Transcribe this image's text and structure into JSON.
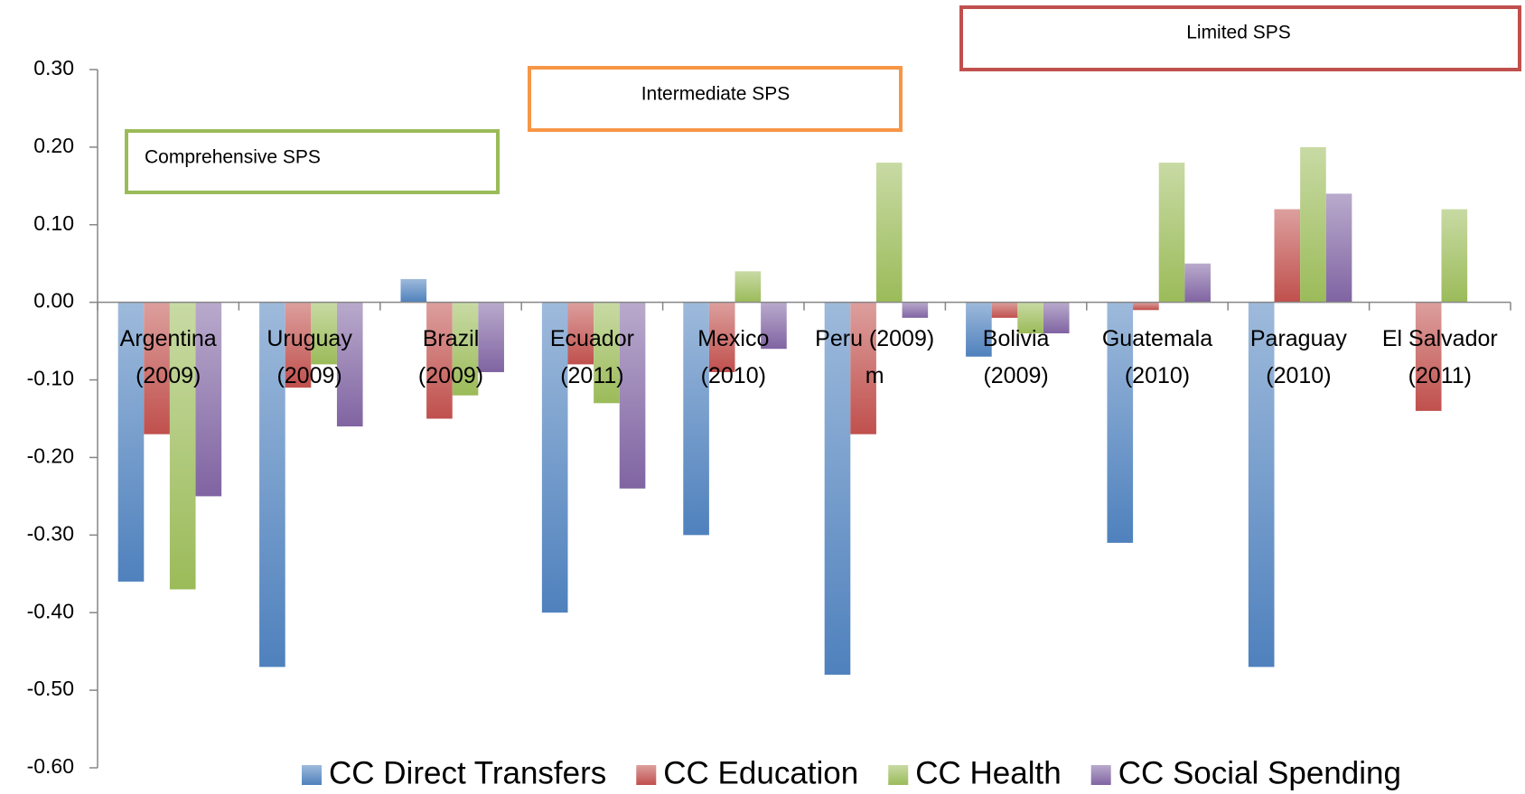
{
  "chart_data": {
    "type": "bar",
    "categories": [
      "Argentina (2009)",
      "Uruguay (2009)",
      "Brazil (2009)",
      "Ecuador (2011)",
      "Mexico (2010)",
      "Peru (2009) m",
      "Bolivia (2009)",
      "Guatemala (2010)",
      "Paraguay (2010)",
      "El Salvador (2011)"
    ],
    "series": [
      {
        "name": "CC Direct Transfers",
        "color": "#4f81bd",
        "values": [
          -0.36,
          -0.47,
          0.03,
          -0.4,
          -0.3,
          -0.48,
          -0.07,
          -0.31,
          -0.47,
          null
        ]
      },
      {
        "name": "CC Education",
        "color": "#c0504d",
        "values": [
          -0.17,
          -0.11,
          -0.15,
          -0.08,
          -0.09,
          -0.17,
          -0.02,
          -0.01,
          0.12,
          -0.14
        ]
      },
      {
        "name": "CC Health",
        "color": "#9bbb59",
        "values": [
          -0.37,
          -0.08,
          -0.12,
          -0.13,
          0.04,
          0.18,
          -0.04,
          0.18,
          0.2,
          0.12
        ]
      },
      {
        "name": "CC Social Spending",
        "color": "#8064a2",
        "values": [
          -0.25,
          -0.16,
          -0.09,
          -0.24,
          -0.06,
          -0.02,
          -0.04,
          0.05,
          0.14,
          null
        ]
      }
    ],
    "ylim": [
      -0.6,
      0.3
    ],
    "yticks": [
      {
        "value": -0.6,
        "label": "-0.60"
      },
      {
        "value": -0.5,
        "label": "-0.50"
      },
      {
        "value": -0.4,
        "label": "-0.40"
      },
      {
        "value": -0.3,
        "label": "-0.30"
      },
      {
        "value": -0.2,
        "label": "-0.20"
      },
      {
        "value": -0.1,
        "label": "-0.10"
      },
      {
        "value": 0,
        "label": "0.00"
      },
      {
        "value": 0.1,
        "label": "0.10"
      },
      {
        "value": 0.2,
        "label": "0.20"
      },
      {
        "value": 0.3,
        "label": "0.30"
      }
    ],
    "grid": false,
    "legend": "bottom",
    "annotations": [
      {
        "text": "Comprehensive SPS",
        "color": "#9bbb59"
      },
      {
        "text": "Intermediate SPS",
        "color": "#f79646"
      },
      {
        "text": "Limited SPS",
        "color": "#c0504d"
      }
    ]
  }
}
